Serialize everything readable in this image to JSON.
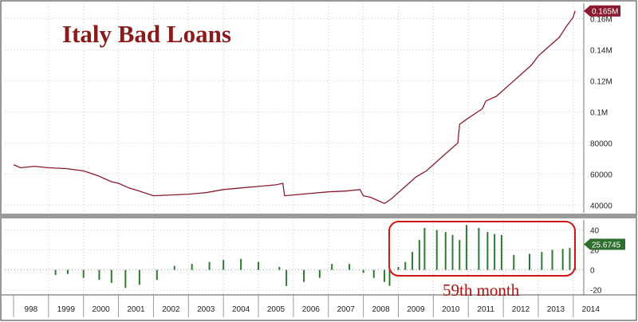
{
  "chart_data": [
    {
      "type": "line",
      "title": "Italy Bad Loans",
      "y_tick_labels": [
        "0.165M",
        "0.16M",
        "0.14M",
        "0.12M",
        "0.1M",
        "80000",
        "60000",
        "40000"
      ],
      "ylim": [
        35000,
        170000
      ],
      "grid": true,
      "last_value_label": "0.165M",
      "color": "#8b1a2e",
      "series": [
        {
          "x": [
            1998.0,
            1998.2,
            1998.6,
            1999.0,
            1999.5,
            2000.0,
            2000.4,
            2000.6,
            2000.8,
            2001.0,
            2001.3,
            2001.6,
            2002.0,
            2002.5,
            2003.0,
            2003.5,
            2004.0,
            2004.5,
            2005.0,
            2005.5,
            2005.7,
            2005.75,
            2006.0,
            2006.5,
            2007.0,
            2007.5,
            2007.9,
            2008.0,
            2008.2,
            2008.4,
            2008.6,
            2008.8,
            2009.0,
            2009.2,
            2009.5,
            2009.8,
            2010.0,
            2010.3,
            2010.6,
            2010.7,
            2010.75,
            2011.0,
            2011.4,
            2011.5,
            2011.8,
            2012.0,
            2012.2,
            2012.5,
            2012.8,
            2013.0,
            2013.3,
            2013.6,
            2013.8,
            2014.0,
            2014.05
          ],
          "values": [
            66000,
            64000,
            65000,
            64000,
            63500,
            62000,
            59000,
            57000,
            55000,
            54000,
            51000,
            49000,
            46000,
            46500,
            47000,
            48000,
            50000,
            51000,
            52000,
            53000,
            54000,
            46000,
            46500,
            47500,
            48500,
            49000,
            50000,
            46000,
            45000,
            43000,
            41000,
            44000,
            48000,
            52000,
            58000,
            62000,
            66000,
            72000,
            78000,
            80000,
            92000,
            96000,
            102000,
            107000,
            110000,
            114000,
            118000,
            124000,
            130000,
            136000,
            142000,
            148000,
            155000,
            161000,
            165000
          ]
        }
      ]
    },
    {
      "type": "bar",
      "y_tick_labels": [
        "40",
        "20",
        "0",
        "-20"
      ],
      "ylim": [
        -25,
        50
      ],
      "grid": true,
      "last_value_label": "25.6745",
      "color": "#2f7a2f",
      "x_tick_labels": [
        "998",
        "1999",
        "2000",
        "2001",
        "2002",
        "2003",
        "2004",
        "2005",
        "2006",
        "2007",
        "2008",
        "2009",
        "2010",
        "2011",
        "2012",
        "2013",
        "2014"
      ],
      "annotation": "59th month",
      "series": [
        {
          "x": [
            1999.2,
            1999.55,
            2000.0,
            2000.45,
            2000.8,
            2001.2,
            2001.6,
            2002.1,
            2002.6,
            2003.1,
            2003.6,
            2004.0,
            2004.5,
            2005.0,
            2005.6,
            2005.8,
            2006.3,
            2006.75,
            2007.1,
            2007.6,
            2008.0,
            2008.3,
            2008.6,
            2008.75,
            2009.0,
            2009.2,
            2009.4,
            2009.6,
            2009.75,
            2010.1,
            2010.35,
            2010.55,
            2010.75,
            2010.95,
            2011.3,
            2011.55,
            2011.75,
            2011.95,
            2012.3,
            2012.75,
            2013.1,
            2013.4,
            2013.7,
            2013.9,
            2014.05
          ],
          "values": [
            -5,
            -4,
            -8,
            -10,
            -13,
            -18,
            -15,
            -10,
            4,
            6,
            8,
            10,
            11,
            8,
            3,
            -16,
            -12,
            -8,
            6,
            6,
            -3,
            -8,
            -12,
            -16,
            3,
            8,
            18,
            30,
            42,
            40,
            38,
            35,
            30,
            45,
            42,
            38,
            36,
            35,
            15,
            16,
            18,
            20,
            21,
            22,
            25.6745
          ]
        }
      ]
    }
  ]
}
